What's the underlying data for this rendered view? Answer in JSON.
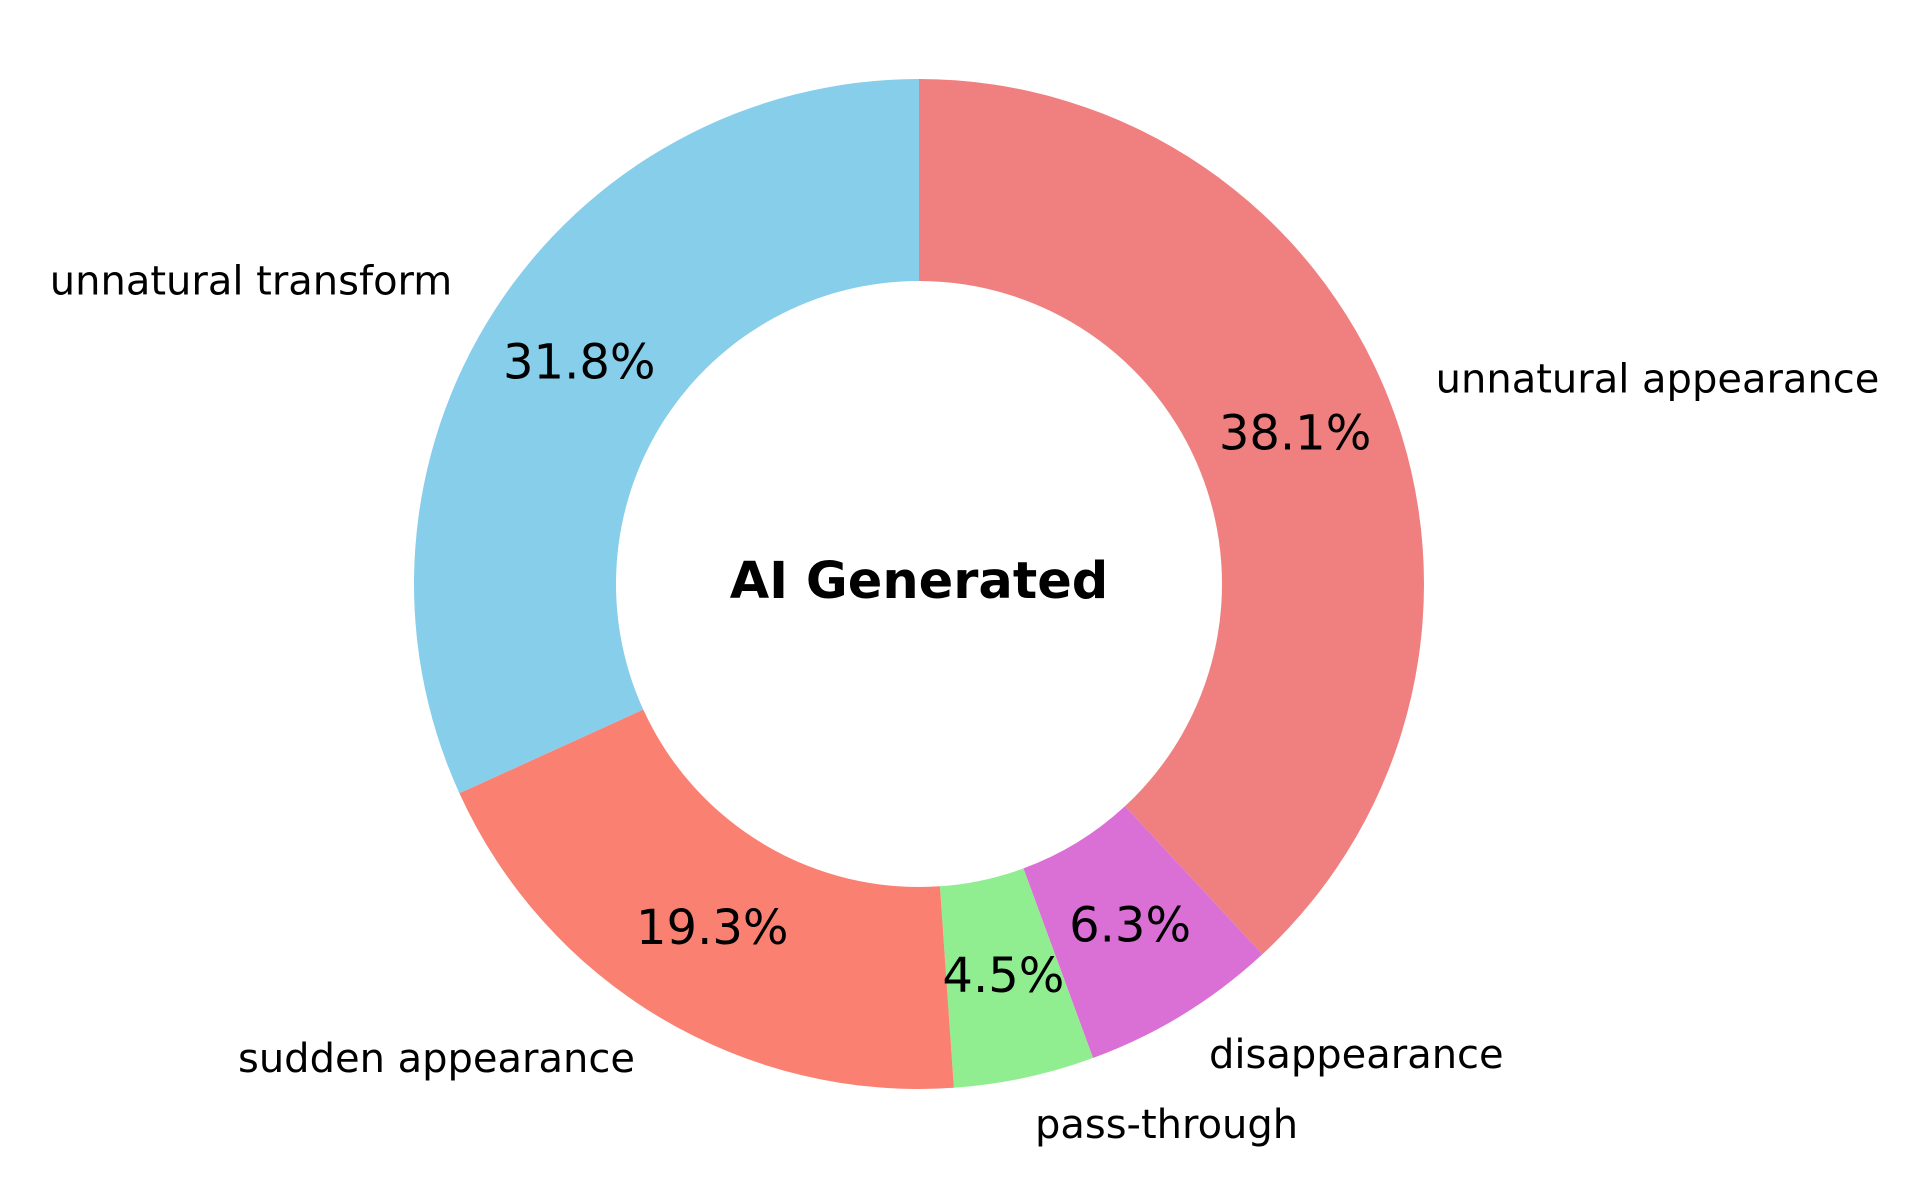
{
  "chart_data": {
    "type": "pie",
    "variant": "donut",
    "center_label": "AI Generated",
    "start_angle_deg": 90,
    "direction": "clockwise",
    "slices": [
      {
        "label": "unnatural appearance",
        "value": 38.1,
        "pct_text": "38.1%",
        "color": "#F08080"
      },
      {
        "label": "disappearance",
        "value": 6.3,
        "pct_text": "6.3%",
        "color": "#DA70D6"
      },
      {
        "label": "pass-through",
        "value": 4.5,
        "pct_text": "4.5%",
        "color": "#90EE90"
      },
      {
        "label": "sudden appearance",
        "value": 19.3,
        "pct_text": "19.3%",
        "color": "#FA8072"
      },
      {
        "label": "unnatural transform",
        "value": 31.8,
        "pct_text": "31.8%",
        "color": "#87CEEB"
      }
    ]
  }
}
